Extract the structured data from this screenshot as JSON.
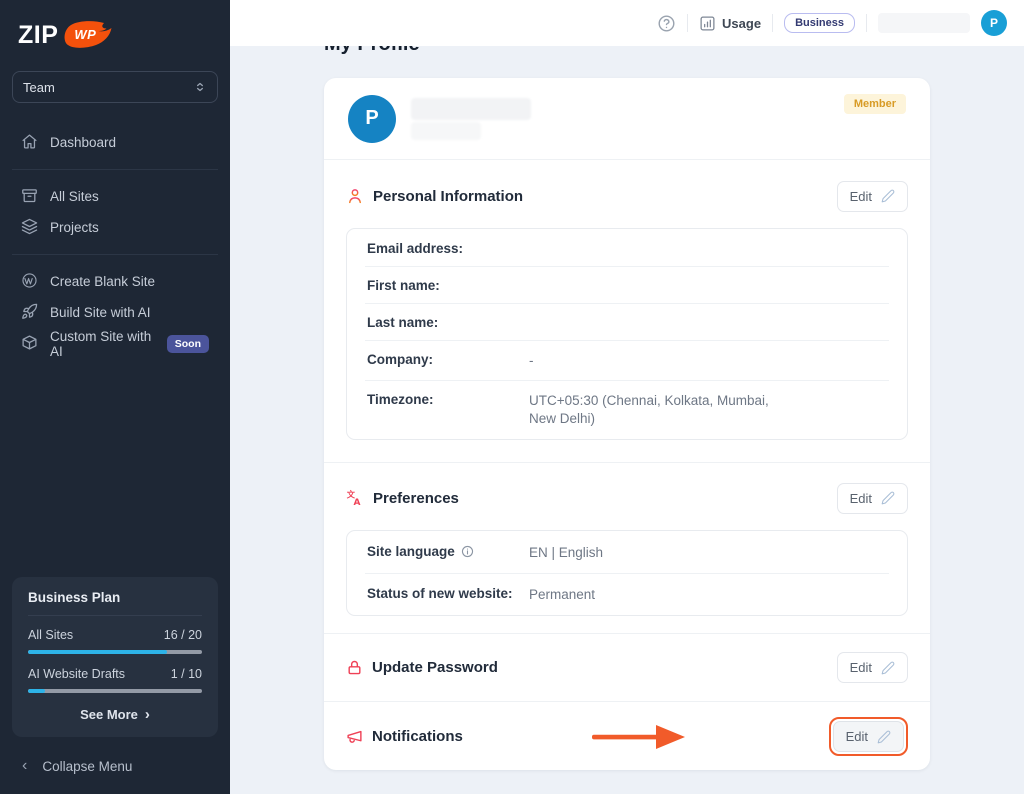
{
  "sidebar": {
    "logo": {
      "text": "ZIP",
      "badge": "WP"
    },
    "team_selector": {
      "value": "Team"
    },
    "nav": [
      {
        "label": "Dashboard",
        "icon": "home"
      },
      {
        "label": "All Sites",
        "icon": "archive"
      },
      {
        "label": "Projects",
        "icon": "layers"
      },
      {
        "label": "Create Blank Site",
        "icon": "wordpress"
      },
      {
        "label": "Build Site with AI",
        "icon": "rocket"
      },
      {
        "label": "Custom Site with AI",
        "icon": "cube",
        "badge": "Soon"
      }
    ],
    "plan": {
      "title": "Business Plan",
      "usages": [
        {
          "label": "All Sites",
          "value": "16 / 20",
          "percent": 80
        },
        {
          "label": "AI Website Drafts",
          "value": "1 / 10",
          "percent": 10
        }
      ],
      "see_more": "See More",
      "see_more_chevron": "›"
    },
    "collapse_label": "Collapse Menu",
    "collapse_chevron": "‹"
  },
  "header": {
    "usage_label": "Usage",
    "plan_badge": "Business",
    "avatar_initial": "P"
  },
  "main": {
    "title": "My Profile",
    "profile": {
      "avatar_initial": "P",
      "role_badge": "Member"
    },
    "personal": {
      "title": "Personal Information",
      "edit_label": "Edit",
      "rows": [
        {
          "label": "Email address:",
          "value": ""
        },
        {
          "label": "First name:",
          "value": ""
        },
        {
          "label": "Last name:",
          "value": ""
        },
        {
          "label": "Company:",
          "value": "-"
        },
        {
          "label": "Timezone:",
          "value": "UTC+05:30 (Chennai, Kolkata, Mumbai, New Delhi)"
        }
      ]
    },
    "preferences": {
      "title": "Preferences",
      "edit_label": "Edit",
      "rows": [
        {
          "label": "Site language",
          "value": "EN | English"
        },
        {
          "label": "Status of new website:",
          "value": "Permanent"
        }
      ]
    },
    "password": {
      "title": "Update Password",
      "edit_label": "Edit"
    },
    "notifications": {
      "title": "Notifications",
      "edit_label": "Edit"
    }
  },
  "colors": {
    "annotation_orange": "#F15B2A",
    "progress_cyan": "#2DB3E8",
    "avatar_blue": "#1583C3",
    "soon_badge_indigo": "#4B549B",
    "member_amber": "#D89B25",
    "section_icon_red": "#EF4156",
    "sidebar_bg": "#1E2735"
  }
}
